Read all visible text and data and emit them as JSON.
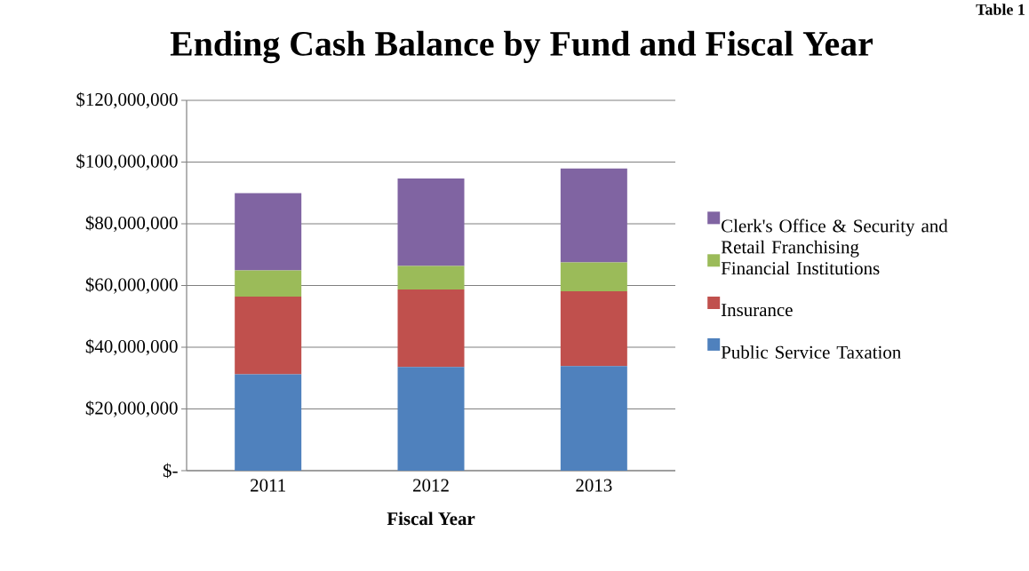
{
  "chart_data": {
    "type": "bar",
    "stacked": true,
    "title": "Ending Cash Balance by Fund and Fiscal Year",
    "xlabel": "Fiscal Year",
    "categories": [
      "2011",
      "2012",
      "2013"
    ],
    "series": [
      {
        "name": "Public Service Taxation",
        "color": "#4f81bd",
        "values": [
          31200000,
          33600000,
          33900000
        ]
      },
      {
        "name": "Insurance",
        "color": "#c0504d",
        "values": [
          25200000,
          25100000,
          24200000
        ]
      },
      {
        "name": "Financial Institutions",
        "color": "#9bbb59",
        "values": [
          8500000,
          7600000,
          9400000
        ]
      },
      {
        "name": "Clerk's Office & Security and Retail Franchising",
        "color": "#8064a2",
        "values": [
          25000000,
          28400000,
          30400000
        ]
      }
    ],
    "ylim": [
      0,
      120000000
    ],
    "yticks": [
      {
        "value": 0,
        "label": "$-"
      },
      {
        "value": 20000000,
        "label": "$20,000,000"
      },
      {
        "value": 40000000,
        "label": "$40,000,000"
      },
      {
        "value": 60000000,
        "label": "$60,000,000"
      },
      {
        "value": 80000000,
        "label": "$80,000,000"
      },
      {
        "value": 100000000,
        "label": "$100,000,000"
      },
      {
        "value": 120000000,
        "label": "$120,000,000"
      }
    ],
    "grid": "y",
    "legend": "right",
    "annotations": [
      "Table 1"
    ]
  }
}
